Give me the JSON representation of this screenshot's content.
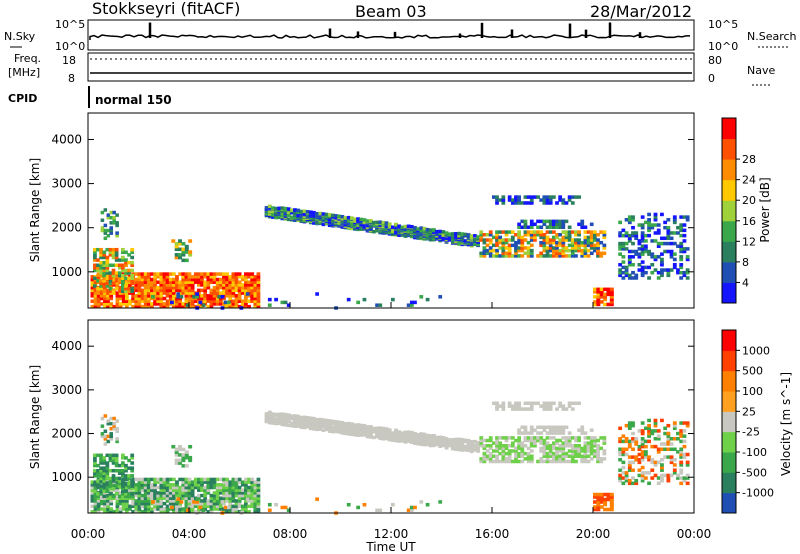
{
  "header": {
    "station": "Stokkseyri (fitACF)",
    "beam": "Beam 03",
    "date": "28/Mar/2012"
  },
  "top_panel": {
    "left_label": "N.Sky",
    "right_label": "N.Search",
    "left_ticks": [
      "10^5",
      "10^0"
    ],
    "right_ticks": [
      "10^5",
      "10^0"
    ]
  },
  "freq_panel": {
    "left_label_line1": "Freq.",
    "left_label_line2": "[MHz]",
    "right_label": "Nave",
    "left_ticks": [
      "18",
      "8"
    ],
    "right_ticks": [
      "80",
      "0"
    ]
  },
  "cpid_panel": {
    "label": "CPID",
    "mode": "normal 150"
  },
  "colors": {
    "power_scale": [
      "#1414ff",
      "#1f4fb5",
      "#2a7f5f",
      "#3aa84a",
      "#9fd23a",
      "#ffc800",
      "#ff8c00",
      "#ff5000",
      "#ff0000"
    ],
    "velocity_scale": [
      "#1f4fb5",
      "#2a7f5f",
      "#3aa84a",
      "#6fd04a",
      "#c8c8c0",
      "#ffa020",
      "#ff8000",
      "#ff4000",
      "#ff0000"
    ]
  },
  "chart_data": [
    {
      "type": "heatmap",
      "name": "power",
      "ylabel": "Slant Range [km]",
      "ylim": [
        180,
        4600
      ],
      "yticks": [
        "1000",
        "2000",
        "3000",
        "4000"
      ],
      "colorbar_label": "Power [dB]",
      "colorbar_ticks": [
        "4",
        "8",
        "12",
        "16",
        "20",
        "24",
        "28"
      ]
    },
    {
      "type": "heatmap",
      "name": "velocity",
      "ylabel": "Slant Range [km]",
      "ylim": [
        180,
        4600
      ],
      "yticks": [
        "1000",
        "2000",
        "3000",
        "4000"
      ],
      "xlabel": "Time UT",
      "xticks": [
        "00:00",
        "04:00",
        "08:00",
        "12:00",
        "16:00",
        "20:00",
        "00:00"
      ],
      "colorbar_label": "Velocity [m s^-1]",
      "colorbar_ticks": [
        "1000",
        "500",
        "100",
        "25",
        "-25",
        "-100",
        "-500",
        "-1000"
      ]
    }
  ]
}
